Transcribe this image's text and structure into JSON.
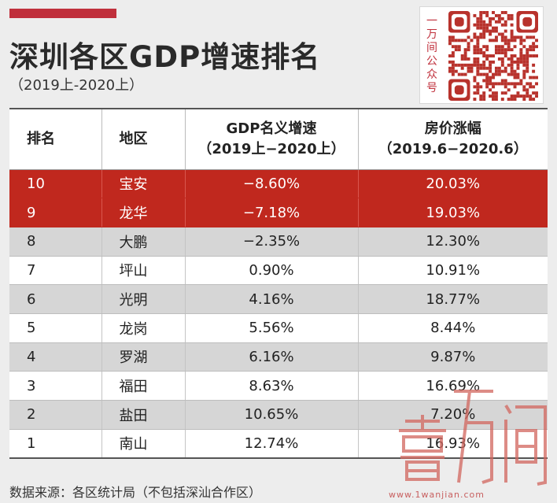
{
  "header": {
    "title": "深圳各区GDP增速排名",
    "subtitle": "（2019上-2020上）"
  },
  "qr": {
    "vertical_text": [
      "一",
      "万",
      "间",
      "公",
      "众",
      "号"
    ]
  },
  "table": {
    "headers": {
      "rank": "排名",
      "district": "地区",
      "gdp_line1": "GDP名义增速",
      "gdp_line2": "（2019上−2020上）",
      "price_line1": "房价涨幅",
      "price_line2": "（2019.6−2020.6）"
    },
    "rows": [
      {
        "rank": "10",
        "district": "宝安",
        "gdp": "−8.60%",
        "price": "20.03%",
        "style": "hl"
      },
      {
        "rank": "9",
        "district": "龙华",
        "gdp": "−7.18%",
        "price": "19.03%",
        "style": "hl"
      },
      {
        "rank": "8",
        "district": "大鹏",
        "gdp": "−2.35%",
        "price": "12.30%",
        "style": "gray"
      },
      {
        "rank": "7",
        "district": "坪山",
        "gdp": "0.90%",
        "price": "10.91%",
        "style": "white"
      },
      {
        "rank": "6",
        "district": "光明",
        "gdp": "4.16%",
        "price": "18.77%",
        "style": "gray"
      },
      {
        "rank": "5",
        "district": "龙岗",
        "gdp": "5.56%",
        "price": "8.44%",
        "style": "white"
      },
      {
        "rank": "4",
        "district": "罗湖",
        "gdp": "6.16%",
        "price": "9.87%",
        "style": "gray"
      },
      {
        "rank": "3",
        "district": "福田",
        "gdp": "8.63%",
        "price": "16.69%",
        "style": "white"
      },
      {
        "rank": "2",
        "district": "盐田",
        "gdp": "10.65%",
        "price": "7.20%",
        "style": "gray"
      },
      {
        "rank": "1",
        "district": "南山",
        "gdp": "12.74%",
        "price": "16.93%",
        "style": "white"
      }
    ]
  },
  "footer": {
    "source": "数据来源：各区统计局（不包括深汕合作区）"
  },
  "watermark": {
    "url": "www.1wanjian.com"
  },
  "colors": {
    "accent": "#c0303c",
    "highlight_row": "#c0281e",
    "gray_row": "#d6d6d6"
  }
}
